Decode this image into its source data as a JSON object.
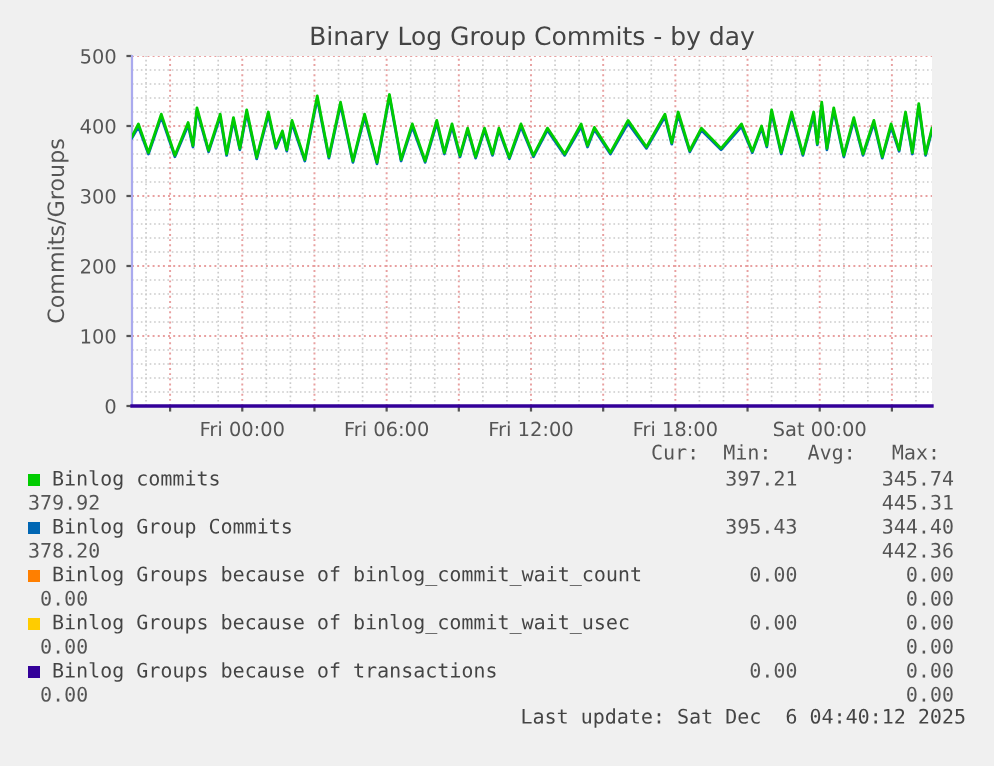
{
  "chart_data": {
    "type": "line",
    "title": "Binary Log Group Commits - by day",
    "ylabel": "Commits/Groups",
    "x": [
      "2025-12-04T19:25",
      "2025-12-04T19:41",
      "2025-12-04T20:06",
      "2025-12-04T20:38",
      "2025-12-04T21:12",
      "2025-12-04T21:45",
      "2025-12-04T21:57",
      "2025-12-04T22:07",
      "2025-12-04T22:36",
      "2025-12-04T23:05",
      "2025-12-04T23:21",
      "2025-12-04T23:38",
      "2025-12-04T23:54",
      "2025-12-05T00:11",
      "2025-12-05T00:36",
      "2025-12-05T01:05",
      "2025-12-05T01:24",
      "2025-12-05T01:40",
      "2025-12-05T01:51",
      "2025-12-05T02:04",
      "2025-12-05T02:36",
      "2025-12-05T03:07",
      "2025-12-05T03:36",
      "2025-12-05T04:05",
      "2025-12-05T04:36",
      "2025-12-05T05:05",
      "2025-12-05T05:36",
      "2025-12-05T06:07",
      "2025-12-05T06:36",
      "2025-12-05T07:04",
      "2025-12-05T07:36",
      "2025-12-05T08:05",
      "2025-12-05T08:24",
      "2025-12-05T08:43",
      "2025-12-05T09:03",
      "2025-12-05T09:22",
      "2025-12-05T09:42",
      "2025-12-05T10:04",
      "2025-12-05T10:24",
      "2025-12-05T10:40",
      "2025-12-05T11:06",
      "2025-12-05T11:35",
      "2025-12-05T12:06",
      "2025-12-05T12:41",
      "2025-12-05T13:24",
      "2025-12-05T14:05",
      "2025-12-05T14:21",
      "2025-12-05T14:38",
      "2025-12-05T15:18",
      "2025-12-05T16:02",
      "2025-12-05T16:48",
      "2025-12-05T17:34",
      "2025-12-05T17:51",
      "2025-12-05T18:07",
      "2025-12-05T18:36",
      "2025-12-05T19:05",
      "2025-12-05T19:54",
      "2025-12-05T20:45",
      "2025-12-05T21:12",
      "2025-12-05T21:35",
      "2025-12-05T21:48",
      "2025-12-05T22:00",
      "2025-12-05T22:24",
      "2025-12-05T22:50",
      "2025-12-05T23:18",
      "2025-12-05T23:45",
      "2025-12-05T23:54",
      "2025-12-06T00:05",
      "2025-12-06T00:18",
      "2025-12-06T00:35",
      "2025-12-06T01:00",
      "2025-12-06T01:25",
      "2025-12-06T01:48",
      "2025-12-06T02:15",
      "2025-12-06T02:36",
      "2025-12-06T02:58",
      "2025-12-06T03:18",
      "2025-12-06T03:34",
      "2025-12-06T03:51",
      "2025-12-06T04:07",
      "2025-12-06T04:24",
      "2025-12-06T04:40"
    ],
    "series": [
      {
        "name": "Binlog commits",
        "color": "#00cc00",
        "values": [
          385,
          403,
          362,
          417,
          358,
          405,
          372,
          426,
          365,
          417,
          360,
          412,
          368,
          423,
          355,
          420,
          370,
          393,
          366,
          408,
          352,
          443,
          356,
          434,
          350,
          417,
          348,
          445,
          352,
          403,
          350,
          408,
          362,
          403,
          358,
          397,
          356,
          397,
          360,
          397,
          355,
          403,
          358,
          397,
          360,
          403,
          372,
          398,
          362,
          408,
          370,
          417,
          376,
          420,
          365,
          397,
          368,
          403,
          364,
          400,
          372,
          423,
          362,
          420,
          360,
          420,
          375,
          434,
          368,
          426,
          358,
          412,
          360,
          408,
          356,
          403,
          366,
          420,
          362,
          432,
          360,
          397
        ]
      },
      {
        "name": "Binlog Group Commits",
        "color": "#0066b3",
        "values": [
          383,
          399,
          360,
          413,
          356,
          401,
          370,
          422,
          363,
          413,
          358,
          408,
          366,
          419,
          353,
          416,
          368,
          390,
          364,
          404,
          350,
          439,
          354,
          430,
          348,
          413,
          346,
          442,
          350,
          399,
          348,
          404,
          360,
          399,
          356,
          394,
          354,
          394,
          358,
          394,
          353,
          399,
          356,
          394,
          358,
          399,
          370,
          395,
          360,
          404,
          368,
          413,
          374,
          416,
          363,
          394,
          366,
          399,
          362,
          397,
          370,
          419,
          360,
          416,
          358,
          416,
          373,
          430,
          366,
          422,
          356,
          408,
          358,
          404,
          354,
          399,
          364,
          416,
          360,
          428,
          358,
          394
        ]
      },
      {
        "name": "Binlog Groups because of binlog_commit_wait_count",
        "color": "#ff7f00",
        "values": [
          null,
          null,
          null,
          null,
          null,
          null,
          null,
          null,
          null,
          null,
          null,
          null,
          null,
          null,
          null,
          null,
          null,
          null,
          null,
          null,
          null,
          null,
          null,
          null,
          null,
          null,
          null,
          null,
          null,
          null,
          null,
          null,
          null,
          null,
          null,
          null,
          null,
          null,
          null,
          null,
          null,
          null,
          null,
          null,
          null,
          null,
          null,
          null,
          null,
          null,
          null,
          null,
          null,
          null,
          null,
          null,
          null,
          null,
          null,
          null,
          null,
          null,
          null,
          null,
          null,
          null,
          null,
          null,
          null,
          null,
          null,
          null,
          null,
          null,
          null,
          null,
          null,
          null,
          null,
          null,
          null,
          null
        ]
      },
      {
        "name": "Binlog Groups because of binlog_commit_wait_usec",
        "color": "#ffcc00",
        "values": [
          null,
          null,
          null,
          null,
          null,
          null,
          null,
          null,
          null,
          null,
          null,
          null,
          null,
          null,
          null,
          null,
          null,
          null,
          null,
          null,
          null,
          null,
          null,
          null,
          null,
          null,
          null,
          null,
          null,
          null,
          null,
          null,
          null,
          null,
          null,
          null,
          null,
          null,
          null,
          null,
          null,
          null,
          null,
          null,
          null,
          null,
          null,
          null,
          null,
          null,
          null,
          null,
          null,
          null,
          null,
          null,
          null,
          null,
          null,
          null,
          null,
          null,
          null,
          null,
          null,
          null,
          null,
          null,
          null,
          null,
          null,
          null,
          null,
          null,
          null,
          null,
          null,
          null,
          null,
          null,
          null,
          null
        ]
      },
      {
        "name": "Binlog Groups because of transactions",
        "color": "#330099",
        "values": [
          0,
          0,
          0,
          0,
          0,
          0,
          0,
          0,
          0,
          0,
          0,
          0,
          0,
          0,
          0,
          0,
          0,
          0,
          0,
          0,
          0,
          0,
          0,
          0,
          0,
          0,
          0,
          0,
          0,
          0,
          0,
          0,
          0,
          0,
          0,
          0,
          0,
          0,
          0,
          0,
          0,
          0,
          0,
          0,
          0,
          0,
          0,
          0,
          0,
          0,
          0,
          0,
          0,
          0,
          0,
          0,
          0,
          0,
          0,
          0,
          0,
          0,
          0,
          0,
          0,
          0,
          0,
          0,
          0,
          0,
          0,
          0,
          0,
          0,
          0,
          0,
          0,
          0,
          0,
          0,
          0,
          0
        ]
      }
    ],
    "xlim": [
      "2025-12-04T19:25",
      "2025-12-06T04:40"
    ],
    "ylim": [
      0,
      500
    ],
    "yticks": [
      0,
      100,
      200,
      300,
      400,
      500
    ],
    "xticks": [
      {
        "value": "2025-12-04T21:00",
        "label": null
      },
      {
        "value": "2025-12-05T00:00",
        "label": "Fri 00:00"
      },
      {
        "value": "2025-12-05T03:00",
        "label": null
      },
      {
        "value": "2025-12-05T06:00",
        "label": "Fri 06:00"
      },
      {
        "value": "2025-12-05T09:00",
        "label": null
      },
      {
        "value": "2025-12-05T12:00",
        "label": "Fri 12:00"
      },
      {
        "value": "2025-12-05T15:00",
        "label": null
      },
      {
        "value": "2025-12-05T18:00",
        "label": "Fri 18:00"
      },
      {
        "value": "2025-12-05T21:00",
        "label": null
      },
      {
        "value": "2025-12-06T00:00",
        "label": "Sat 00:00"
      },
      {
        "value": "2025-12-06T03:00",
        "label": null
      }
    ],
    "grid": true,
    "legend": "bottom",
    "marker": "none",
    "line_style": "solid",
    "annotations": [
      "Cur:  Min:   Avg:   Max:",
      "397.21       345.74",
      "379.92",
      "445.31",
      "395.43       344.40",
      "378.20",
      "442.36",
      "0.00         0.00",
      " 0.00",
      "0.00",
      "0.00         0.00",
      " 0.00",
      "0.00",
      "0.00         0.00",
      " 0.00",
      "0.00",
      "Last update: Sat Dec  6 04:40:12 2025"
    ]
  }
}
